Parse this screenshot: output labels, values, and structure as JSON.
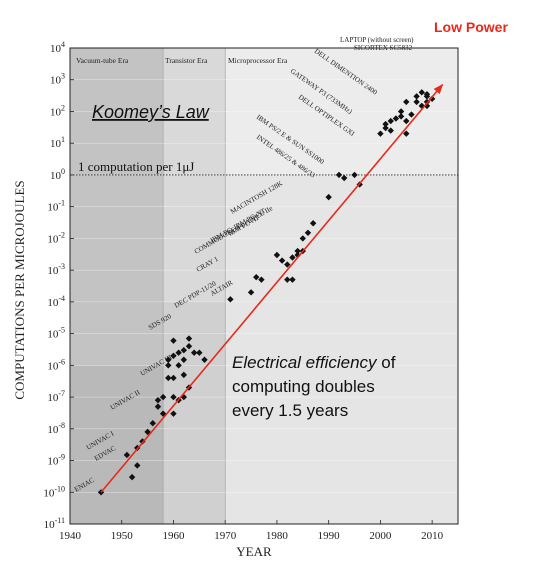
{
  "annotations": {
    "low_power": "Low Power",
    "law_title": "Koomey’s Law",
    "efficiency_line1_em": "Electrical efficiency",
    "efficiency_line1_rest": " of",
    "efficiency_line2": "computing doubles",
    "efficiency_line3": "every 1.5 years"
  },
  "chart_data": {
    "type": "scatter",
    "xlabel": "YEAR",
    "ylabel": "COMPUTATIONS PER MICROJOULES",
    "xlim": [
      1940,
      2015
    ],
    "ylim_log10": [
      -11,
      4
    ],
    "y_scale": "log",
    "x_ticks": [
      1940,
      1950,
      1960,
      1970,
      1980,
      1990,
      2000,
      2010
    ],
    "y_ticks_exp": [
      -11,
      -10,
      -9,
      -8,
      -7,
      -6,
      -5,
      -4,
      -3,
      -2,
      -1,
      0,
      1,
      2,
      3,
      4
    ],
    "eras": [
      {
        "name": "Vacuum-tube Era",
        "start": 1940,
        "end": 1958,
        "shade": "#c3c3c3"
      },
      {
        "name": "Transistor Era",
        "start": 1958,
        "end": 1970,
        "shade": "#d9d9d9"
      },
      {
        "name": "Microprocessor Era",
        "start": 1970,
        "end": 2015,
        "shade": "#ececec"
      }
    ],
    "reference_line": {
      "label": "1 computation per 1μJ",
      "y": 1
    },
    "trend_line": {
      "from": [
        1946,
        1e-10
      ],
      "to": [
        2012,
        700.0
      ],
      "color": "#e8291c"
    },
    "machine_labels": [
      {
        "name": "ENIAC",
        "x": 1946,
        "y": 1e-10
      },
      {
        "name": "EDVAC",
        "x": 1951,
        "y": 3e-10
      },
      {
        "name": "UNIVAC I",
        "x": 1951.5,
        "y": 1.2e-09
      },
      {
        "name": "UNIVAC II",
        "x": 1956,
        "y": 1.5e-08
      },
      {
        "name": "UNIVAC III",
        "x": 1960,
        "y": 5e-07
      },
      {
        "name": "SDS 920",
        "x": 1962,
        "y": 8e-06
      },
      {
        "name": "DEC PDP-11/20",
        "x": 1971,
        "y": 0.00015
      },
      {
        "name": "ALTAIR",
        "x": 1975,
        "y": 0.0005
      },
      {
        "name": "CRAY 1",
        "x": 1976,
        "y": 0.0015
      },
      {
        "name": "COMMODORE 64, APPLE IIe",
        "x": 1982,
        "y": 0.003
      },
      {
        "name": "IBM PC, IBM PC-XT",
        "x": 1982,
        "y": 0.005
      },
      {
        "name": "IBM PC-AT",
        "x": 1984,
        "y": 0.01
      },
      {
        "name": "MACINTOSH 128K",
        "x": 1984,
        "y": 0.025
      },
      {
        "name": "INTEL 486/25 & 486/33",
        "x": 1993,
        "y": 1
      },
      {
        "name": "IBM PS/2 E & SUN SS1000",
        "x": 1994,
        "y": 1
      },
      {
        "name": "DELL OPTIPLEX GXI",
        "x": 1997,
        "y": 3
      },
      {
        "name": "GATEWAY P3 (733MHz)",
        "x": 2000,
        "y": 50
      },
      {
        "name": "DELL DIMENTION 2400",
        "x": 2004,
        "y": 100
      },
      {
        "name": "SICORTEX SC5832",
        "x": 2008,
        "y": 300
      },
      {
        "name": "LAPTOP (without screen)",
        "x": 2008,
        "y": 500
      }
    ],
    "points": [
      [
        1946,
        1e-10
      ],
      [
        1951,
        1.5e-09
      ],
      [
        1952,
        3e-10
      ],
      [
        1953,
        7e-10
      ],
      [
        1953,
        2.5e-09
      ],
      [
        1954,
        4e-09
      ],
      [
        1955,
        8e-09
      ],
      [
        1956,
        1.5e-08
      ],
      [
        1957,
        5e-08
      ],
      [
        1957,
        8e-08
      ],
      [
        1958,
        3e-08
      ],
      [
        1959,
        4e-07
      ],
      [
        1959,
        1e-06
      ],
      [
        1959,
        1.5e-06
      ],
      [
        1960,
        2e-06
      ],
      [
        1960,
        1e-07
      ],
      [
        1960,
        3e-08
      ],
      [
        1960,
        4e-07
      ],
      [
        1961,
        1e-06
      ],
      [
        1961,
        2.5e-06
      ],
      [
        1962,
        3e-06
      ],
      [
        1962,
        5e-07
      ],
      [
        1962,
        1.5e-06
      ],
      [
        1962,
        1e-07
      ],
      [
        1963,
        4e-06
      ],
      [
        1963,
        7e-06
      ],
      [
        1963,
        2e-07
      ],
      [
        1964,
        2.5e-06
      ],
      [
        1965,
        2.5e-06
      ],
      [
        1966,
        1.5e-06
      ],
      [
        1960,
        6e-06
      ],
      [
        1961,
        8e-08
      ],
      [
        1958,
        1e-07
      ],
      [
        1971,
        0.00012
      ],
      [
        1975,
        0.0002
      ],
      [
        1976,
        0.0006
      ],
      [
        1977,
        0.0005
      ],
      [
        1980,
        0.003
      ],
      [
        1981,
        0.002
      ],
      [
        1982,
        0.0005
      ],
      [
        1982,
        0.0015
      ],
      [
        1983,
        0.0005
      ],
      [
        1983,
        0.0025
      ],
      [
        1984,
        0.004
      ],
      [
        1984,
        0.003
      ],
      [
        1985,
        0.004
      ],
      [
        1985,
        0.01
      ],
      [
        1986,
        0.015
      ],
      [
        1987,
        0.03
      ],
      [
        1990,
        0.2
      ],
      [
        1992,
        1
      ],
      [
        1993,
        0.8
      ],
      [
        1995,
        1
      ],
      [
        1996,
        0.5
      ],
      [
        2000,
        20
      ],
      [
        2001,
        30
      ],
      [
        2001,
        40
      ],
      [
        2002,
        25
      ],
      [
        2002,
        50
      ],
      [
        2003,
        60
      ],
      [
        2004,
        100
      ],
      [
        2004,
        70
      ],
      [
        2005,
        50
      ],
      [
        2005,
        20
      ],
      [
        2005,
        200
      ],
      [
        2006,
        80
      ],
      [
        2007,
        200
      ],
      [
        2007,
        300
      ],
      [
        2008,
        150
      ],
      [
        2008,
        400
      ],
      [
        2009,
        200
      ],
      [
        2009,
        300
      ],
      [
        2009,
        150
      ],
      [
        2010,
        250
      ],
      [
        2009,
        350
      ]
    ]
  }
}
